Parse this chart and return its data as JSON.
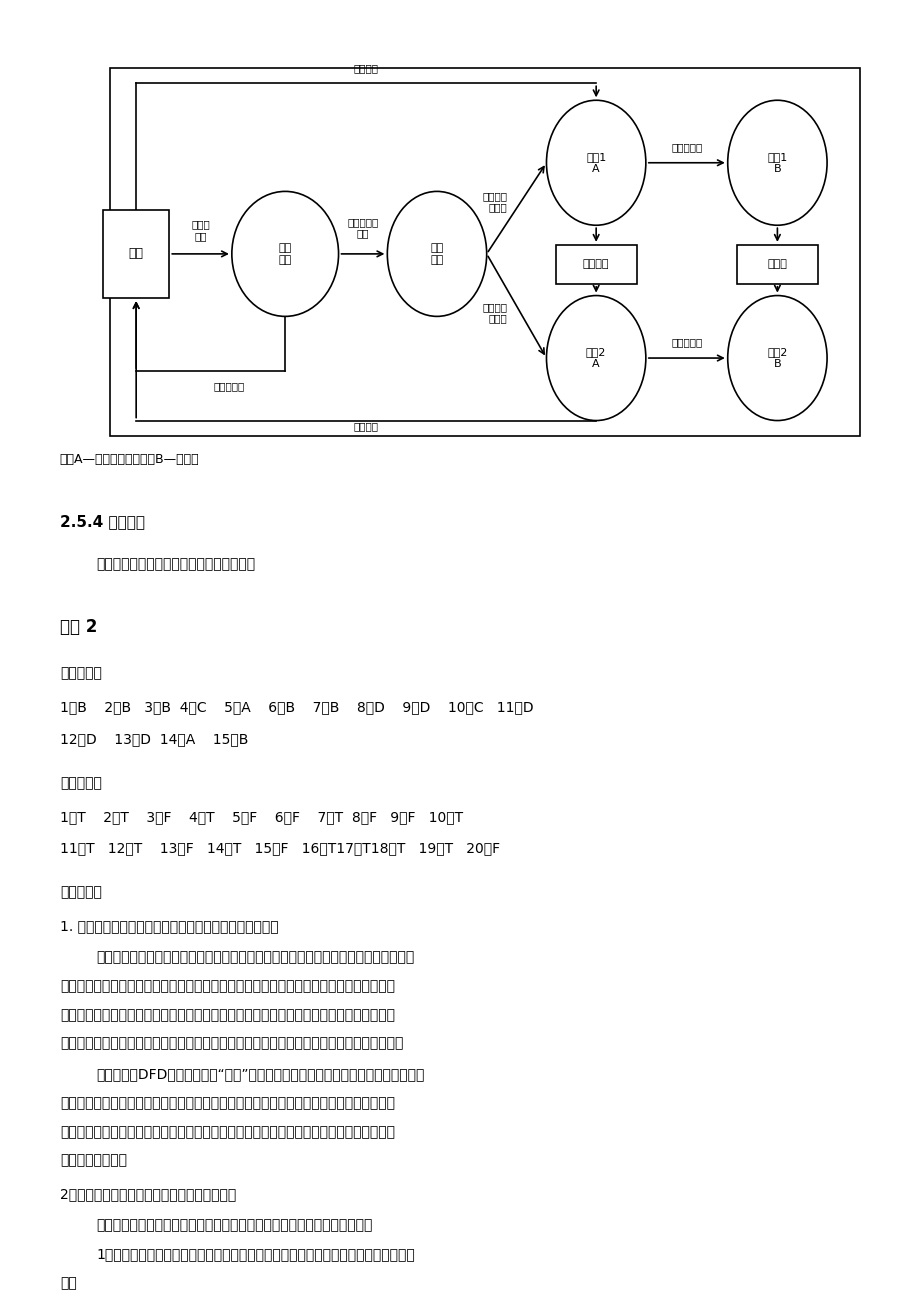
{
  "bg_color": "#ffffff",
  "page_width": 9.2,
  "page_height": 13.02,
  "note": "注：A—文件帐目及存折；B—现金帐",
  "section_title": "2.5.4 实践环节",
  "section_answer": "答：开发软件的成本主要是由人力决定的。",
  "exercises_title": "习题 2",
  "choice_title": "一、选择题",
  "choice_line1": "1、B    2、B   3、B  4、C    5、A    6、B    7、B    8、D    9、D    10、C   11、D",
  "choice_line2": "12、D    13、D  14、A    15、B",
  "judge_title": "二、判断题",
  "judge_line1": "1、T    2、T    3、F    4、T    5、F    6、F    7、T  8、F   9、F   10、T",
  "judge_line2": "11、T   12、T    13、F   14、T   15、F   16、T17、T18、T   19、T   20、F",
  "short_title": "三、简答题",
  "q1": "1. 什么是系统流程图？什么是数据流图？二者有何区别？",
  "q1_a1": "答：系统流程图是描绘物理系统的图形工具，基本思想是用图形符号以黑盒子形式描绘",
  "q1_a2": "系统里面的每个部件（程序、文档、数据库、表格、人工过程等）。系统流程图表达的是数",
  "q1_a3": "据信息在系统各部件之间流动的情况，而不是对数据信息进行加工处理的控制过程，因此尽",
  "q1_a4": "管它使用的某些符号和程序流程图中的符号相同，但是它是物理数据流图而不是程序流程图。",
  "q1_a5": "数据流图（DFD）是一种描述“分解”的图形化技术，它用直观的图形清晰地描绘了系",
  "q1_a6": "统的逻辑模型，图中没有任何具体的物理元素，它仅仅描绘信息流和数据在软件中流动和处",
  "q1_a7": "理的逻辑过程。设计数据流图时只考虑系统必须完成的基本逻辑功能，完全不考虑怎样具体",
  "q1_a8": "地实现这些功能。",
  "q2": "2．画系统的数据流图时，应该注意哪些问题？",
  "q2_a1": "答：分层画数据流图便于人们理解和使用，但在绘制时需要注意以下事项。",
  "q2_a2": "1）每个处理至少有一个输入数据流和一个输出数据流，反映出此加工数据的来源与结",
  "q2_a3": "果。"
}
